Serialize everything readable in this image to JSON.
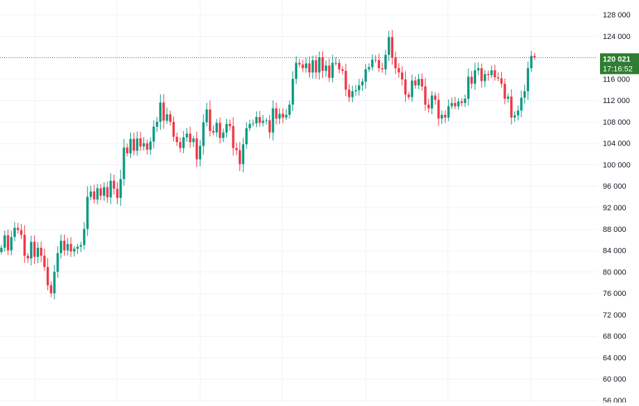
{
  "chart_data": {
    "type": "candlestick",
    "y_axis": {
      "ylim": [
        56000,
        128000
      ],
      "ticks": [
        {
          "value": 128000,
          "label": "128 000"
        },
        {
          "value": 124000,
          "label": "124 000"
        },
        {
          "value": 120000,
          "label": "120 000"
        },
        {
          "value": 116000,
          "label": "116 000"
        },
        {
          "value": 112000,
          "label": "112 000"
        },
        {
          "value": 108000,
          "label": "108 000"
        },
        {
          "value": 104000,
          "label": "104 000"
        },
        {
          "value": 100000,
          "label": "100 000"
        },
        {
          "value": 96000,
          "label": "96 000"
        },
        {
          "value": 92000,
          "label": "92 000"
        },
        {
          "value": 88000,
          "label": "88 000"
        },
        {
          "value": 84000,
          "label": "84 000"
        },
        {
          "value": 80000,
          "label": "80 000"
        },
        {
          "value": 76000,
          "label": "76 000"
        },
        {
          "value": 72000,
          "label": "72 000"
        },
        {
          "value": 68000,
          "label": "68 000"
        },
        {
          "value": 64000,
          "label": "64 000"
        },
        {
          "value": 60000,
          "label": "60 000"
        },
        {
          "value": 56000,
          "label": "56 000"
        }
      ]
    },
    "grid": true,
    "colors": {
      "up": "#089981",
      "down": "#f23645",
      "badge": "#2e7d32",
      "grid": "#f0f3fa",
      "axis_text": "#131722"
    },
    "current_price": {
      "value": 120021,
      "label": "120 021",
      "countdown": "17:16:52"
    },
    "closes": [
      84500,
      86800,
      84000,
      86500,
      88200,
      87800,
      86900,
      83000,
      82500,
      85600,
      82800,
      84500,
      83000,
      80900,
      77500,
      76000,
      80000,
      83500,
      85800,
      84000,
      85200,
      83800,
      84300,
      84700,
      85000,
      88000,
      94000,
      95000,
      93500,
      95600,
      94200,
      95800,
      93900,
      97000,
      95500,
      93800,
      97300,
      103200,
      102100,
      104800,
      102600,
      104900,
      103400,
      104000,
      102800,
      104300,
      107100,
      108000,
      111600,
      108200,
      109400,
      108000,
      105200,
      104200,
      103100,
      105100,
      105800,
      104200,
      104900,
      101000,
      103500,
      107900,
      110300,
      106300,
      106000,
      107800,
      105000,
      106000,
      107600,
      107200,
      103100,
      102700,
      100100,
      103800,
      106800,
      107600,
      107700,
      108900,
      107800,
      108200,
      108300,
      106000,
      110500,
      108600,
      109500,
      108800,
      109300,
      111200,
      116000,
      119000,
      118700,
      118000,
      118900,
      117200,
      119500,
      117200,
      120000,
      117500,
      118500,
      116200,
      119000,
      119000,
      117800,
      117500,
      114000,
      112600,
      113700,
      113900,
      114800,
      115500,
      117800,
      118200,
      119600,
      119500,
      118000,
      117800,
      120500,
      123800,
      120000,
      118000,
      117200,
      115900,
      113100,
      112600,
      115700,
      114800,
      116000,
      114600,
      111200,
      110500,
      112900,
      112100,
      108600,
      109300,
      108800,
      110900,
      111500,
      110900,
      111800,
      111500,
      112300,
      116400,
      115100,
      117600,
      118000,
      115600,
      116900,
      116700,
      117600,
      116300,
      116100,
      115100,
      112300,
      112700,
      108800,
      109200,
      110100,
      112500,
      113700,
      118000,
      120300,
      120021
    ]
  }
}
